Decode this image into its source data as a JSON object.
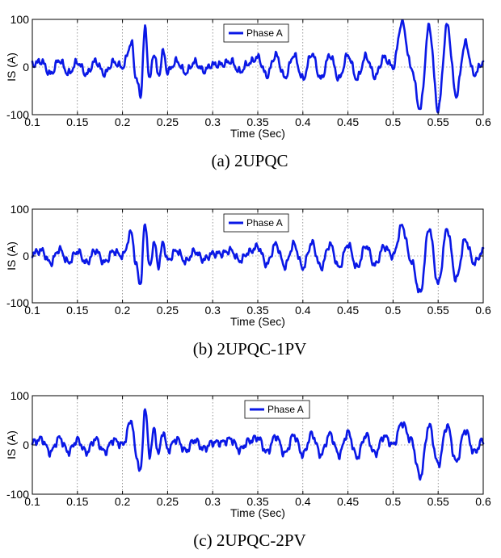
{
  "colors": {
    "series": "#0a18e6"
  },
  "chart_data": [
    {
      "type": "line",
      "caption": "(a) 2UPQC",
      "xlabel": "Time (Sec)",
      "ylabel": "IS (A)",
      "xlim": [
        0.1,
        0.6
      ],
      "ylim": [
        -100,
        100
      ],
      "xticks": [
        "0.1",
        "0.15",
        "0.2",
        "0.25",
        "0.3",
        "0.35",
        "0.4",
        "0.45",
        "0.5",
        "0.55",
        "0.6"
      ],
      "yticks": [
        "-100",
        "0",
        "100"
      ],
      "grid": true,
      "legend": "top-center",
      "series": [
        {
          "name": "Phase A",
          "x": [
            0.1,
            0.11,
            0.12,
            0.13,
            0.14,
            0.15,
            0.16,
            0.17,
            0.18,
            0.19,
            0.2,
            0.21,
            0.215,
            0.22,
            0.225,
            0.23,
            0.235,
            0.24,
            0.245,
            0.25,
            0.26,
            0.27,
            0.28,
            0.29,
            0.3,
            0.31,
            0.32,
            0.33,
            0.34,
            0.35,
            0.36,
            0.37,
            0.38,
            0.39,
            0.4,
            0.41,
            0.42,
            0.43,
            0.44,
            0.45,
            0.46,
            0.47,
            0.48,
            0.49,
            0.5,
            0.51,
            0.52,
            0.53,
            0.54,
            0.55,
            0.56,
            0.57,
            0.58,
            0.59,
            0.6
          ],
          "y": [
            5,
            12,
            -15,
            14,
            -14,
            10,
            -15,
            12,
            -14,
            10,
            0,
            50,
            -22,
            -60,
            80,
            -25,
            30,
            -20,
            32,
            -10,
            12,
            -12,
            10,
            -8,
            5,
            5,
            12,
            -10,
            8,
            20,
            -18,
            25,
            -22,
            25,
            -25,
            28,
            -25,
            25,
            -25,
            25,
            -25,
            22,
            -20,
            20,
            0,
            95,
            0,
            -88,
            85,
            -90,
            88,
            -60,
            50,
            -15,
            10
          ]
        }
      ]
    },
    {
      "type": "line",
      "caption": "(b) 2UPQC-1PV",
      "xlabel": "Time (Sec)",
      "ylabel": "IS (A)",
      "xlim": [
        0.1,
        0.6
      ],
      "ylim": [
        -100,
        100
      ],
      "xticks": [
        "0.1",
        "0.15",
        "0.2",
        "0.25",
        "0.3",
        "0.35",
        "0.4",
        "0.45",
        "0.5",
        "0.55",
        "0.6"
      ],
      "yticks": [
        "-100",
        "0",
        "100"
      ],
      "grid": true,
      "legend": "top-center",
      "series": [
        {
          "name": "Phase A",
          "x": [
            0.1,
            0.11,
            0.12,
            0.13,
            0.14,
            0.15,
            0.16,
            0.17,
            0.18,
            0.19,
            0.2,
            0.21,
            0.215,
            0.22,
            0.225,
            0.23,
            0.235,
            0.24,
            0.245,
            0.25,
            0.26,
            0.27,
            0.28,
            0.29,
            0.3,
            0.31,
            0.32,
            0.33,
            0.34,
            0.35,
            0.36,
            0.37,
            0.38,
            0.39,
            0.4,
            0.41,
            0.42,
            0.43,
            0.44,
            0.45,
            0.46,
            0.47,
            0.48,
            0.49,
            0.5,
            0.51,
            0.52,
            0.53,
            0.54,
            0.55,
            0.56,
            0.57,
            0.58,
            0.59,
            0.6
          ],
          "y": [
            5,
            12,
            -15,
            14,
            -14,
            10,
            -15,
            12,
            -14,
            10,
            0,
            50,
            -20,
            -60,
            72,
            -25,
            28,
            -20,
            28,
            -10,
            12,
            -12,
            10,
            -8,
            5,
            5,
            12,
            -10,
            8,
            20,
            -18,
            25,
            -22,
            25,
            -25,
            28,
            -25,
            25,
            -25,
            25,
            -25,
            22,
            -20,
            20,
            0,
            65,
            -10,
            -80,
            60,
            -60,
            58,
            -50,
            35,
            -15,
            10
          ]
        }
      ]
    },
    {
      "type": "line",
      "caption": "(c) 2UPQC-2PV",
      "xlabel": "Time (Sec)",
      "ylabel": "IS (A)",
      "xlim": [
        0.1,
        0.6
      ],
      "ylim": [
        -100,
        100
      ],
      "xticks": [
        "0.1",
        "0.15",
        "0.2",
        "0.25",
        "0.3",
        "0.35",
        "0.4",
        "0.45",
        "0.5",
        "0.55",
        "0.6"
      ],
      "yticks": [
        "-100",
        "0",
        "100"
      ],
      "grid": true,
      "legend": "top-center",
      "series": [
        {
          "name": "Phase A",
          "x": [
            0.1,
            0.11,
            0.12,
            0.13,
            0.14,
            0.15,
            0.16,
            0.17,
            0.18,
            0.19,
            0.2,
            0.21,
            0.215,
            0.22,
            0.225,
            0.23,
            0.235,
            0.24,
            0.245,
            0.25,
            0.26,
            0.27,
            0.28,
            0.29,
            0.3,
            0.31,
            0.32,
            0.33,
            0.34,
            0.35,
            0.36,
            0.37,
            0.38,
            0.39,
            0.4,
            0.41,
            0.42,
            0.43,
            0.44,
            0.45,
            0.46,
            0.47,
            0.48,
            0.49,
            0.5,
            0.51,
            0.52,
            0.53,
            0.54,
            0.55,
            0.56,
            0.57,
            0.58,
            0.59,
            0.6
          ],
          "y": [
            5,
            12,
            -15,
            14,
            -14,
            10,
            -15,
            12,
            -14,
            10,
            0,
            50,
            -20,
            -55,
            75,
            -20,
            30,
            -18,
            28,
            -10,
            12,
            -12,
            10,
            -8,
            5,
            5,
            12,
            -10,
            8,
            15,
            -15,
            18,
            -18,
            20,
            -20,
            22,
            -20,
            22,
            -20,
            25,
            -25,
            20,
            -18,
            18,
            0,
            45,
            10,
            -65,
            40,
            -40,
            40,
            -35,
            30,
            -15,
            10
          ]
        }
      ]
    }
  ]
}
